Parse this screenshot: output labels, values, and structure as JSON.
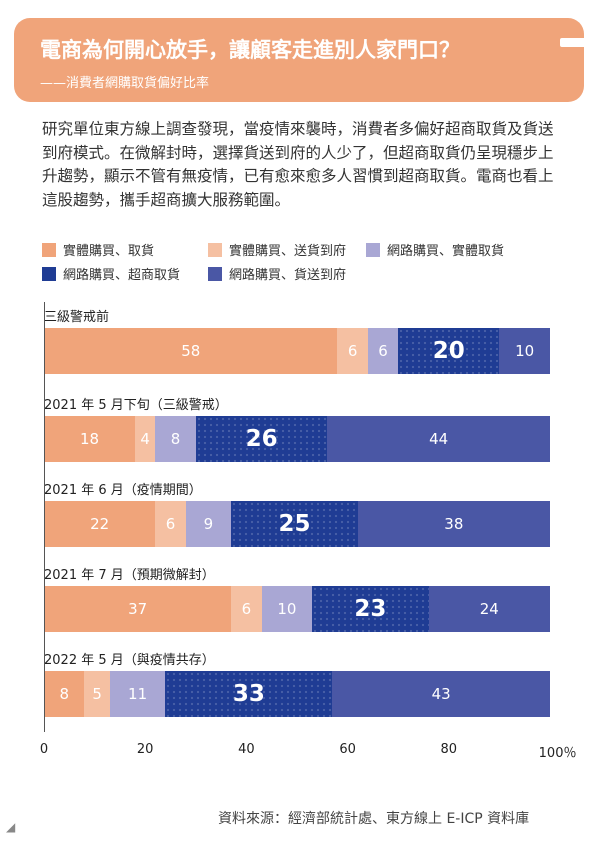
{
  "header": {
    "title": "電商為何開心放手，讓顧客走進別人家門口？",
    "subtitle": "——消費者網購取貨偏好比率"
  },
  "intro": "研究單位東方線上調查發現，當疫情來襲時，消費者多偏好超商取貨及貨送到府模式。在微解封時，選擇貨送到府的人少了，但超商取貨仍呈現穩步上升趨勢，顯示不管有無疫情，已有愈來愈多人習慣到超商取貨。電商也看上這股趨勢，攜手超商擴大服務範圍。",
  "source": "資料來源：經濟部統計處、東方線上 E-ICP 資料庫",
  "colors": {
    "banner": "#f0a47a",
    "series": [
      "#f0a47a",
      "#f5c0a2",
      "#a9a7d4",
      "#1f3c94",
      "#4a57a5"
    ]
  },
  "chart_data": {
    "type": "bar",
    "orientation": "horizontal-stacked",
    "title": "消費者網購取貨偏好比率",
    "categories": [
      "三級警戒前",
      "2021 年 5 月下旬（三級警戒）",
      "2021 年 6 月（疫情期間）",
      "2021 年 7 月（預期微解封）",
      "2022 年 5 月（與疫情共存）"
    ],
    "series": [
      {
        "name": "實體購買、取貨",
        "values": [
          58,
          18,
          22,
          37,
          8
        ]
      },
      {
        "name": "實體購買、送貨到府",
        "values": [
          6,
          4,
          6,
          6,
          5
        ]
      },
      {
        "name": "網路購買、實體取貨",
        "values": [
          6,
          8,
          9,
          10,
          11
        ]
      },
      {
        "name": "網路購買、超商取貨",
        "values": [
          20,
          26,
          25,
          23,
          33
        ]
      },
      {
        "name": "網路購買、貨送到府",
        "values": [
          10,
          44,
          38,
          24,
          43
        ]
      }
    ],
    "highlight_series": 3,
    "xlim": [
      0,
      100
    ],
    "xticks": [
      "0",
      "20",
      "40",
      "60",
      "80",
      "100％"
    ],
    "xlabel": "",
    "ylabel": "",
    "legend_position": "top"
  }
}
